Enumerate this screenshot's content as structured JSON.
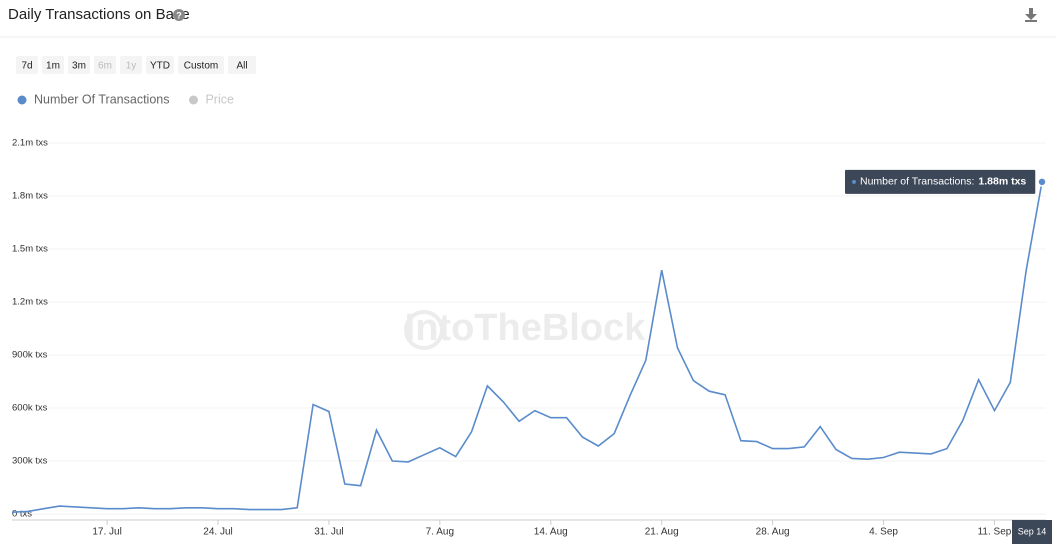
{
  "chart_data": {
    "type": "line",
    "title": "Daily Transactions on Base",
    "range_buttons": [
      {
        "label": "7d",
        "enabled": true
      },
      {
        "label": "1m",
        "enabled": true
      },
      {
        "label": "3m",
        "enabled": true
      },
      {
        "label": "6m",
        "enabled": false
      },
      {
        "label": "1y",
        "enabled": false
      },
      {
        "label": "YTD",
        "enabled": true
      },
      {
        "label": "Custom",
        "enabled": true
      },
      {
        "label": "All",
        "enabled": true
      }
    ],
    "watermark": "IntoTheBlock",
    "tooltip_label": "Number of Transactions:",
    "categories": [
      null,
      null,
      null,
      null,
      null,
      null,
      "17. Jul",
      null,
      null,
      null,
      null,
      null,
      null,
      "24. Jul",
      null,
      null,
      null,
      null,
      null,
      null,
      "31. Jul",
      null,
      null,
      null,
      null,
      null,
      null,
      "7. Aug",
      null,
      null,
      null,
      null,
      null,
      null,
      "14. Aug",
      null,
      null,
      null,
      null,
      null,
      null,
      "21. Aug",
      null,
      null,
      null,
      null,
      null,
      null,
      "28. Aug",
      null,
      null,
      null,
      null,
      null,
      null,
      "4. Sep",
      null,
      null,
      null,
      null,
      null,
      null,
      "11. Sep",
      null,
      null,
      "Sep 14"
    ],
    "series": [
      {
        "name": "Number Of Transactions",
        "color": "#5a8bcb",
        "visible": true,
        "values": [
          10000,
          15000,
          30000,
          45000,
          40000,
          35000,
          30000,
          30000,
          35000,
          30000,
          30000,
          35000,
          35000,
          30000,
          30000,
          25000,
          25000,
          25000,
          35000,
          620000,
          580000,
          170000,
          160000,
          475000,
          300000,
          295000,
          335000,
          375000,
          325000,
          465000,
          725000,
          635000,
          525000,
          585000,
          545000,
          545000,
          435000,
          385000,
          455000,
          670000,
          870000,
          1380000,
          940000,
          755000,
          695000,
          675000,
          415000,
          410000,
          370000,
          370000,
          380000,
          495000,
          365000,
          315000,
          310000,
          320000,
          350000,
          345000,
          340000,
          370000,
          530000,
          760000,
          585000,
          745000,
          1380000,
          1880000
        ],
        "value_labels": [
          null,
          null,
          null,
          null,
          null,
          null,
          null,
          null,
          null,
          null,
          null,
          null,
          null,
          null,
          null,
          null,
          null,
          null,
          null,
          null,
          null,
          null,
          null,
          null,
          null,
          null,
          null,
          null,
          null,
          null,
          null,
          null,
          null,
          null,
          null,
          null,
          null,
          null,
          null,
          null,
          null,
          null,
          null,
          null,
          null,
          null,
          null,
          null,
          null,
          null,
          null,
          null,
          null,
          null,
          null,
          null,
          null,
          null,
          null,
          null,
          null,
          null,
          null,
          null,
          null,
          "1.88m txs"
        ]
      },
      {
        "name": "Price",
        "color": "#c8c8c8",
        "visible": false
      }
    ],
    "ylim": [
      0,
      2100000
    ],
    "yticks": [
      {
        "value": 0,
        "label": "0 txs"
      },
      {
        "value": 300000,
        "label": "300k txs"
      },
      {
        "value": 600000,
        "label": "600k txs"
      },
      {
        "value": 900000,
        "label": "900k txs"
      },
      {
        "value": 1200000,
        "label": "1.2m txs"
      },
      {
        "value": 1500000,
        "label": "1.5m txs"
      },
      {
        "value": 1800000,
        "label": "1.8m txs"
      },
      {
        "value": 2100000,
        "label": "2.1m txs"
      }
    ],
    "grid": true
  }
}
